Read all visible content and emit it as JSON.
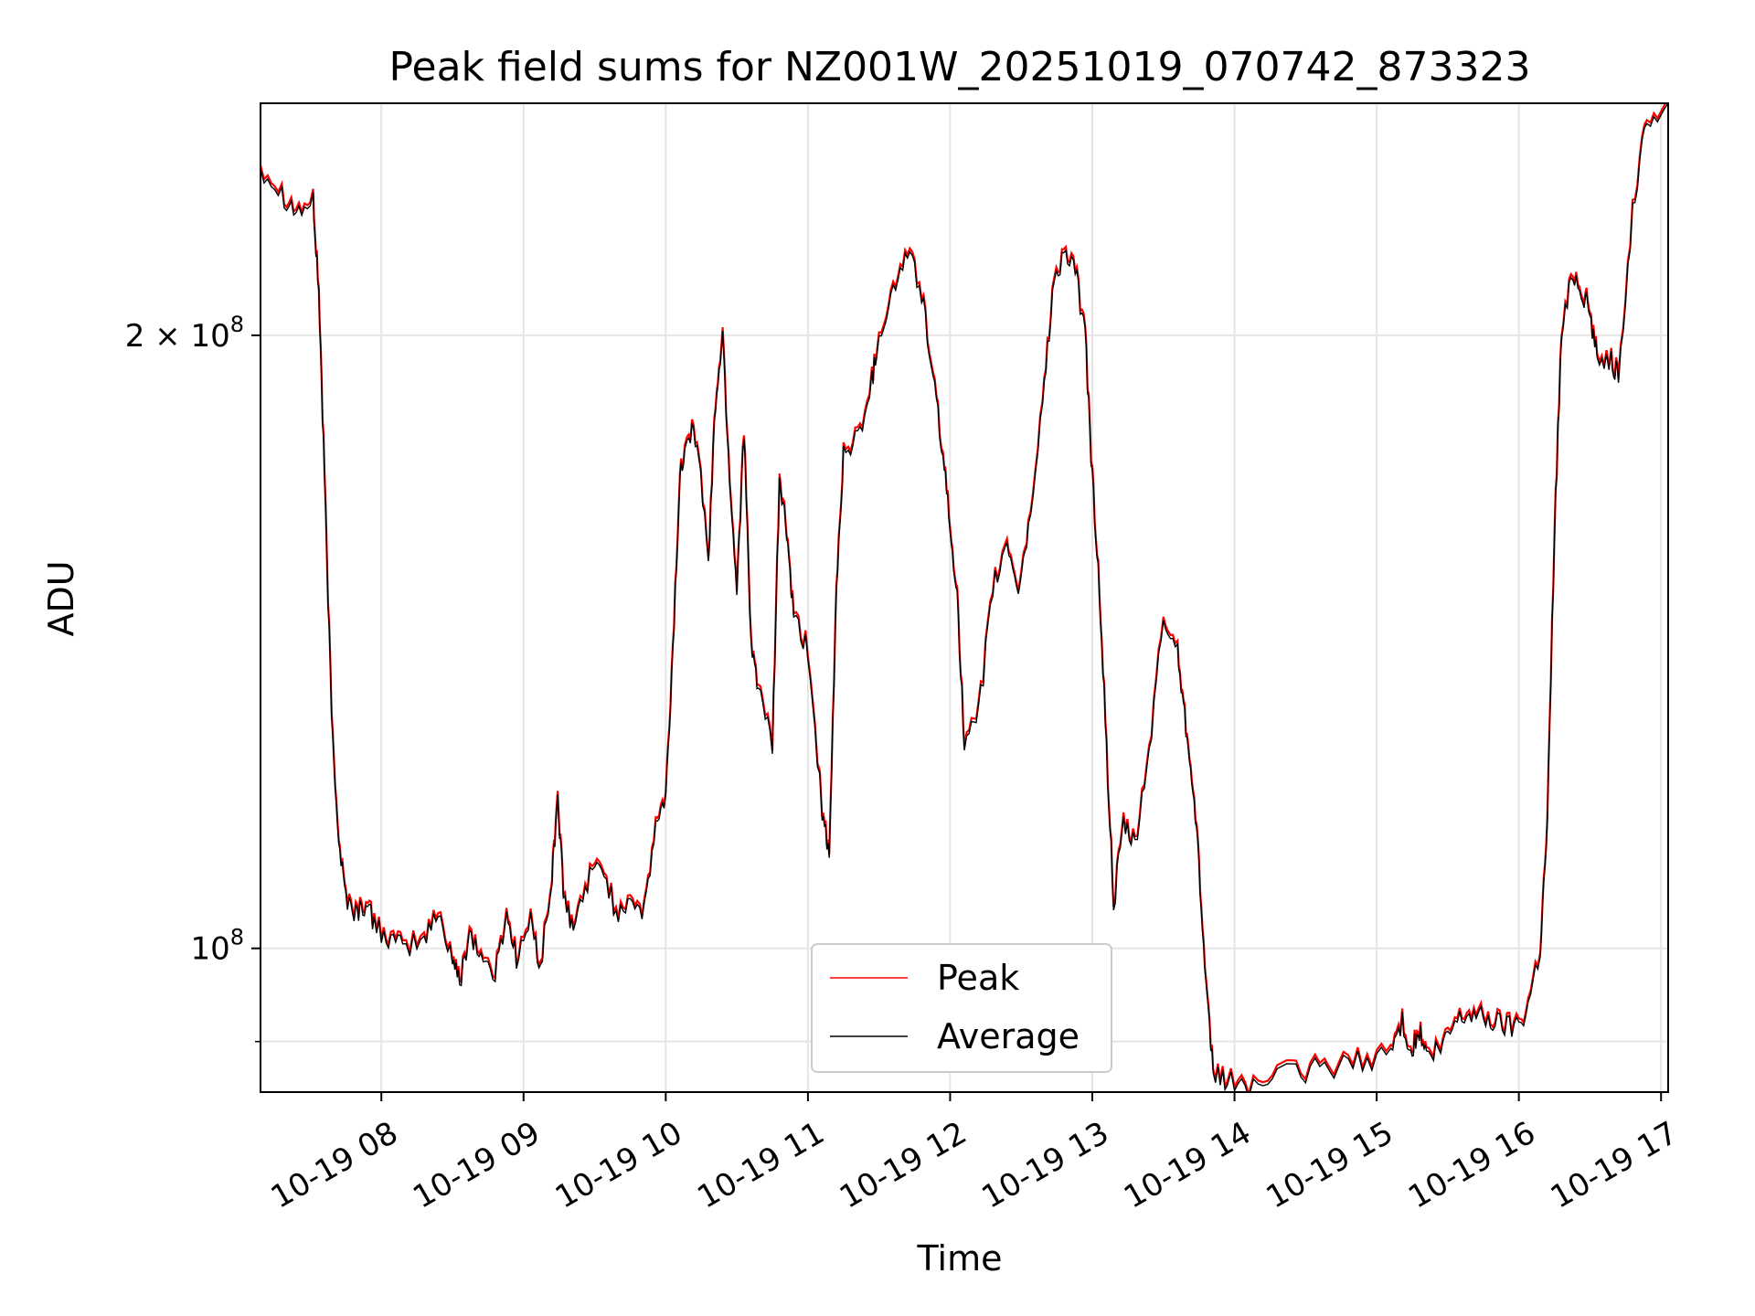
{
  "chart_data": {
    "type": "line",
    "title": "Peak field sums for NZ001W_20251019_070742_873323",
    "xlabel": "Time",
    "ylabel": "ADU",
    "yscale": "log",
    "ylim": [
      85000000,
      260000000
    ],
    "xlim": [
      7.15,
      17.05
    ],
    "grid": true,
    "legend_position": "lower-center",
    "x_ticks": [
      {
        "value": 8,
        "label": "10-19 08"
      },
      {
        "value": 9,
        "label": "10-19 09"
      },
      {
        "value": 10,
        "label": "10-19 10"
      },
      {
        "value": 11,
        "label": "10-19 11"
      },
      {
        "value": 12,
        "label": "10-19 12"
      },
      {
        "value": 13,
        "label": "10-19 13"
      },
      {
        "value": 14,
        "label": "10-19 14"
      },
      {
        "value": 15,
        "label": "10-19 15"
      },
      {
        "value": 16,
        "label": "10-19 16"
      },
      {
        "value": 17,
        "label": "10-19 17"
      }
    ],
    "y_ticks": [
      {
        "value": 100000000,
        "label_base": "10",
        "label_exp": "8",
        "label_coef": ""
      },
      {
        "value": 200000000,
        "label_base": "10",
        "label_exp": "8",
        "label_coef": "2 × "
      }
    ],
    "y_minor_ticks": [
      90000000
    ],
    "series": [
      {
        "name": "Peak",
        "color": "#ff0000",
        "offset_factor": 1.004,
        "points": [
          [
            7.15,
            242000000
          ],
          [
            7.3,
            235000000
          ],
          [
            7.4,
            230000000
          ],
          [
            7.52,
            232000000
          ],
          [
            7.56,
            210000000
          ],
          [
            7.6,
            170000000
          ],
          [
            7.65,
            130000000
          ],
          [
            7.7,
            113000000
          ],
          [
            7.75,
            106000000
          ],
          [
            7.82,
            104000000
          ],
          [
            7.88,
            105000000
          ],
          [
            7.95,
            103000000
          ],
          [
            8.05,
            101000000
          ],
          [
            8.15,
            100000000
          ],
          [
            8.3,
            101000000
          ],
          [
            8.4,
            104000000
          ],
          [
            8.5,
            99000000
          ],
          [
            8.55,
            96000000
          ],
          [
            8.62,
            102000000
          ],
          [
            8.7,
            99000000
          ],
          [
            8.8,
            97000000
          ],
          [
            8.88,
            104000000
          ],
          [
            8.95,
            99000000
          ],
          [
            9.05,
            103000000
          ],
          [
            9.12,
            98000000
          ],
          [
            9.2,
            108000000
          ],
          [
            9.24,
            119000000
          ],
          [
            9.28,
            106000000
          ],
          [
            9.35,
            102000000
          ],
          [
            9.45,
            108000000
          ],
          [
            9.55,
            110000000
          ],
          [
            9.65,
            104000000
          ],
          [
            9.75,
            106000000
          ],
          [
            9.85,
            104000000
          ],
          [
            9.93,
            115000000
          ],
          [
            10.0,
            118000000
          ],
          [
            10.05,
            140000000
          ],
          [
            10.1,
            170000000
          ],
          [
            10.15,
            180000000
          ],
          [
            10.22,
            178000000
          ],
          [
            10.3,
            155000000
          ],
          [
            10.35,
            185000000
          ],
          [
            10.4,
            200000000
          ],
          [
            10.45,
            170000000
          ],
          [
            10.5,
            150000000
          ],
          [
            10.55,
            180000000
          ],
          [
            10.6,
            140000000
          ],
          [
            10.65,
            135000000
          ],
          [
            10.75,
            125000000
          ],
          [
            10.8,
            170000000
          ],
          [
            10.85,
            160000000
          ],
          [
            10.9,
            145000000
          ],
          [
            11.0,
            140000000
          ],
          [
            11.1,
            117000000
          ],
          [
            11.15,
            110000000
          ],
          [
            11.2,
            150000000
          ],
          [
            11.25,
            175000000
          ],
          [
            11.35,
            178000000
          ],
          [
            11.45,
            190000000
          ],
          [
            11.5,
            200000000
          ],
          [
            11.6,
            210000000
          ],
          [
            11.7,
            220000000
          ],
          [
            11.8,
            210000000
          ],
          [
            11.88,
            190000000
          ],
          [
            11.95,
            175000000
          ],
          [
            12.0,
            160000000
          ],
          [
            12.05,
            150000000
          ],
          [
            12.1,
            125000000
          ],
          [
            12.2,
            130000000
          ],
          [
            12.3,
            150000000
          ],
          [
            12.4,
            158000000
          ],
          [
            12.48,
            150000000
          ],
          [
            12.55,
            160000000
          ],
          [
            12.65,
            185000000
          ],
          [
            12.72,
            210000000
          ],
          [
            12.8,
            220000000
          ],
          [
            12.88,
            215000000
          ],
          [
            12.95,
            200000000
          ],
          [
            13.0,
            170000000
          ],
          [
            13.05,
            150000000
          ],
          [
            13.1,
            125000000
          ],
          [
            13.15,
            105000000
          ],
          [
            13.22,
            115000000
          ],
          [
            13.3,
            112000000
          ],
          [
            13.4,
            125000000
          ],
          [
            13.5,
            145000000
          ],
          [
            13.6,
            140000000
          ],
          [
            13.65,
            130000000
          ],
          [
            13.7,
            122000000
          ],
          [
            13.75,
            110000000
          ],
          [
            13.8,
            95000000
          ],
          [
            13.85,
            87000000
          ],
          [
            13.95,
            86000000
          ],
          [
            14.1,
            85500000
          ],
          [
            14.3,
            86500000
          ],
          [
            14.5,
            87000000
          ],
          [
            14.7,
            87500000
          ],
          [
            14.9,
            88000000
          ],
          [
            15.1,
            89000000
          ],
          [
            15.18,
            92000000
          ],
          [
            15.25,
            89000000
          ],
          [
            15.3,
            91000000
          ],
          [
            15.35,
            88500000
          ],
          [
            15.45,
            89000000
          ],
          [
            15.55,
            92000000
          ],
          [
            15.65,
            93000000
          ],
          [
            15.75,
            92500000
          ],
          [
            15.85,
            92000000
          ],
          [
            15.95,
            91500000
          ],
          [
            16.05,
            93000000
          ],
          [
            16.15,
            100000000
          ],
          [
            16.2,
            115000000
          ],
          [
            16.25,
            160000000
          ],
          [
            16.3,
            200000000
          ],
          [
            16.38,
            215000000
          ],
          [
            16.45,
            210000000
          ],
          [
            16.5,
            205000000
          ],
          [
            16.55,
            195000000
          ],
          [
            16.65,
            195000000
          ],
          [
            16.7,
            190000000
          ],
          [
            16.8,
            230000000
          ],
          [
            16.9,
            255000000
          ],
          [
            17.05,
            260000000
          ]
        ]
      },
      {
        "name": "Average",
        "color": "#000000",
        "offset_factor": 1.0,
        "points": []
      }
    ]
  }
}
